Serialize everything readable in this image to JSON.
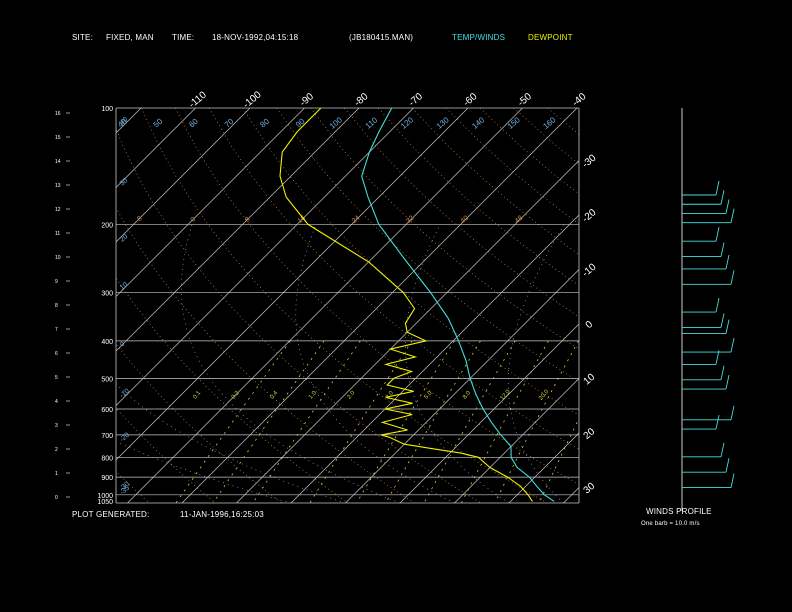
{
  "header": {
    "site_label": "SITE:",
    "site_value": "FIXED, MAN",
    "time_label": "TIME:",
    "time_value": "18-NOV-1992,04:15:18",
    "file_name": "(JB180415.MAN)",
    "legend_temp": "TEMP/WINDS",
    "legend_dew": "DEWPOINT"
  },
  "footer": {
    "plot_label": "PLOT GENERATED:",
    "plot_value": "11-JAN-1996,16:25:03"
  },
  "winds": {
    "title": "WINDS PROFILE",
    "note": "One barb = 10.0 m/s"
  },
  "colors": {
    "temp": "#40e0e0",
    "dew": "#f0f000",
    "grid": "#c8c8c8",
    "dry_adiabat": "#d08a3a",
    "mixing": "#d0d040",
    "moist": "#70b0e0",
    "background": "#000000"
  },
  "chart_data": {
    "type": "line",
    "pressure_levels": [
      "100",
      "200",
      "300",
      "400",
      "500",
      "600",
      "700",
      "800",
      "900",
      "1000",
      "1050"
    ],
    "left_height_ticks": [
      "16",
      "15",
      "14",
      "13",
      "12",
      "11",
      "10",
      "9",
      "8",
      "7",
      "6",
      "5",
      "4",
      "3",
      "2",
      "1",
      "0"
    ],
    "isotherm_labels_top": [
      "-110",
      "-100",
      "-90",
      "-80",
      "-70",
      "-60",
      "-50",
      "-40"
    ],
    "isotherm_labels_right": [
      "-30",
      "-20",
      "-10",
      "0",
      "10",
      "20",
      "30"
    ],
    "top_moist_labels": [
      "40",
      "50",
      "60",
      "70",
      "80",
      "90",
      "100",
      "110",
      "120",
      "130",
      "140",
      "150",
      "160"
    ],
    "dry_adiabat_labels": [
      "-8",
      "0",
      "8",
      "16",
      "24",
      "32",
      "40",
      "48"
    ],
    "mixing_ratio_labels": [
      "0.1",
      "0.2",
      "0.4",
      "1.0",
      "2.0",
      "3.0",
      "5.0",
      "8.0",
      "12.0",
      "20.0"
    ],
    "moist_left_labels": [
      "40",
      "30",
      "20",
      "10",
      "0",
      "-10",
      "-20",
      "-30",
      "-35"
    ],
    "temperature": [
      {
        "p": 1040,
        "t": 28
      },
      {
        "p": 1000,
        "t": 25
      },
      {
        "p": 950,
        "t": 22
      },
      {
        "p": 900,
        "t": 19
      },
      {
        "p": 850,
        "t": 15
      },
      {
        "p": 800,
        "t": 12
      },
      {
        "p": 750,
        "t": 10
      },
      {
        "p": 700,
        "t": 6
      },
      {
        "p": 650,
        "t": 2
      },
      {
        "p": 600,
        "t": -2
      },
      {
        "p": 550,
        "t": -6
      },
      {
        "p": 500,
        "t": -10
      },
      {
        "p": 450,
        "t": -14
      },
      {
        "p": 400,
        "t": -19
      },
      {
        "p": 350,
        "t": -25
      },
      {
        "p": 300,
        "t": -33
      },
      {
        "p": 250,
        "t": -43
      },
      {
        "p": 200,
        "t": -55
      },
      {
        "p": 170,
        "t": -62
      },
      {
        "p": 150,
        "t": -67
      },
      {
        "p": 130,
        "t": -70
      },
      {
        "p": 115,
        "t": -72
      },
      {
        "p": 100,
        "t": -74
      }
    ],
    "dewpoint": [
      {
        "p": 1040,
        "t": 24
      },
      {
        "p": 1000,
        "t": 22
      },
      {
        "p": 950,
        "t": 19
      },
      {
        "p": 900,
        "t": 15
      },
      {
        "p": 850,
        "t": 10
      },
      {
        "p": 800,
        "t": 6
      },
      {
        "p": 780,
        "t": 2
      },
      {
        "p": 760,
        "t": -4
      },
      {
        "p": 740,
        "t": -10
      },
      {
        "p": 710,
        "t": -14
      },
      {
        "p": 700,
        "t": -16
      },
      {
        "p": 680,
        "t": -12
      },
      {
        "p": 650,
        "t": -18
      },
      {
        "p": 620,
        "t": -14
      },
      {
        "p": 600,
        "t": -20
      },
      {
        "p": 580,
        "t": -16
      },
      {
        "p": 560,
        "t": -22
      },
      {
        "p": 540,
        "t": -18
      },
      {
        "p": 520,
        "t": -24
      },
      {
        "p": 500,
        "t": -24
      },
      {
        "p": 480,
        "t": -22
      },
      {
        "p": 460,
        "t": -28
      },
      {
        "p": 440,
        "t": -24
      },
      {
        "p": 420,
        "t": -30
      },
      {
        "p": 400,
        "t": -25
      },
      {
        "p": 380,
        "t": -30
      },
      {
        "p": 360,
        "t": -32
      },
      {
        "p": 330,
        "t": -33
      },
      {
        "p": 300,
        "t": -38
      },
      {
        "p": 250,
        "t": -50
      },
      {
        "p": 200,
        "t": -68
      },
      {
        "p": 170,
        "t": -77
      },
      {
        "p": 150,
        "t": -82
      },
      {
        "p": 130,
        "t": -86
      },
      {
        "p": 115,
        "t": -87
      },
      {
        "p": 100,
        "t": -87
      }
    ],
    "wind_profile_levels": [
      {
        "level": 1.0
      },
      {
        "level": 0.97
      },
      {
        "level": 0.94
      },
      {
        "level": 0.91
      },
      {
        "level": 0.85
      },
      {
        "level": 0.8
      },
      {
        "level": 0.76
      },
      {
        "level": 0.71
      },
      {
        "level": 0.62
      },
      {
        "level": 0.57
      },
      {
        "level": 0.55
      },
      {
        "level": 0.49
      },
      {
        "level": 0.45
      },
      {
        "level": 0.4
      },
      {
        "level": 0.37
      },
      {
        "level": 0.27
      },
      {
        "level": 0.24
      },
      {
        "level": 0.15
      },
      {
        "level": 0.1
      },
      {
        "level": 0.05
      }
    ]
  }
}
